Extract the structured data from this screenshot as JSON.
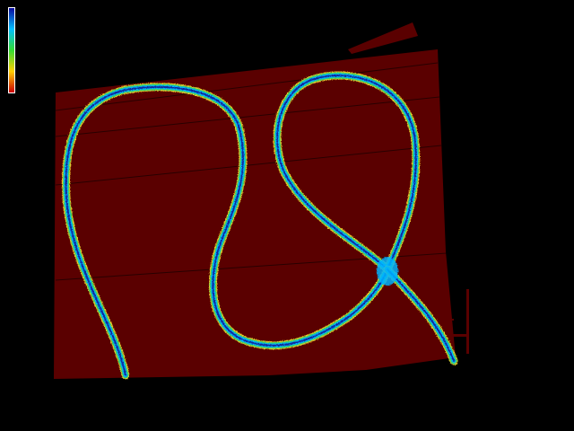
{
  "colors": {
    "background": "#000000",
    "plane": "#5a0000",
    "scale_low": "#cc0000",
    "scale_mid_low": "#ffd000",
    "scale_mid": "#33dd33",
    "scale_mid_high": "#00c0ff",
    "scale_high": "#0a0aa0",
    "tube_outer": "#ffe030",
    "tube_mid": "#30d060",
    "tube_inner": "#00b4ff",
    "tube_core": "#0a2aa0"
  },
  "legend": {
    "type": "vertical-colormap",
    "orientation": "high-at-top",
    "icon": "colorbar-icon"
  },
  "scene": {
    "subject": "height-map-plane",
    "curves": [
      "left-loop-curve",
      "right-teardrop-curve",
      "crossing-tail-curve"
    ]
  }
}
